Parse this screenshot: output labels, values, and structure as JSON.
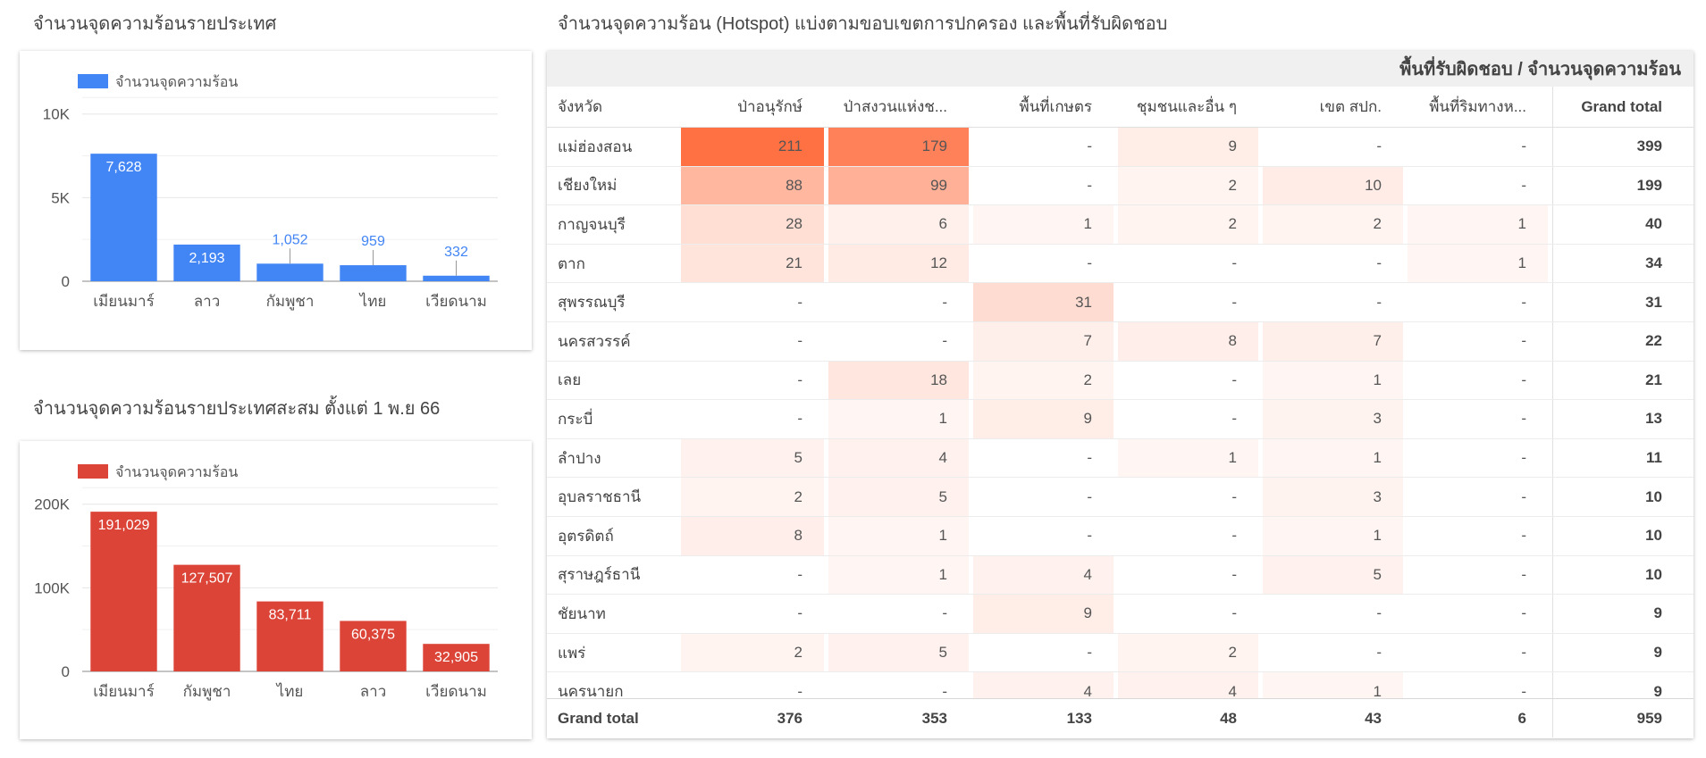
{
  "titles": {
    "chart1": "จำนวนจุดความร้อนรายประเทศ",
    "chart2": "จำนวนจุดความร้อนรายประเทศสะสม ตั้งแต่ 1 พ.ย 66",
    "table": "จำนวนจุดความร้อน (Hotspot) แบ่งตามขอบเขตการปกครอง และพื้นที่รับผิดชอบ"
  },
  "chart_data": [
    {
      "type": "bar",
      "categories": [
        "เมียนมาร์",
        "ลาว",
        "กัมพูชา",
        "ไทย",
        "เวียดนาม"
      ],
      "series": [
        {
          "name": "จำนวนจุดความร้อน",
          "values": [
            7628,
            2193,
            1052,
            959,
            332
          ]
        }
      ],
      "data_labels": [
        "7,628",
        "2,193",
        "1,052",
        "959",
        "332"
      ],
      "y_ticks": [
        0,
        5000,
        10000
      ],
      "y_tick_labels": [
        "0",
        "5K",
        "10K"
      ],
      "ylim": [
        0,
        11000
      ],
      "grid": true,
      "legend": "top-left",
      "color": "#4285f4"
    },
    {
      "type": "bar",
      "categories": [
        "เมียนมาร์",
        "กัมพูชา",
        "ไทย",
        "ลาว",
        "เวียดนาม"
      ],
      "series": [
        {
          "name": "จำนวนจุดความร้อน",
          "values": [
            191029,
            127507,
            83711,
            60375,
            32905
          ]
        }
      ],
      "data_labels": [
        "191,029",
        "127,507",
        "83,711",
        "60,375",
        "32,905"
      ],
      "y_ticks": [
        0,
        100000,
        200000
      ],
      "y_tick_labels": [
        "0",
        "100K",
        "200K"
      ],
      "ylim": [
        0,
        220000
      ],
      "grid": true,
      "legend": "top-left",
      "color": "#db4437"
    },
    {
      "type": "table",
      "header_title": "พื้นที่รับผิดชอบ / จำนวนจุดความร้อน",
      "columns": [
        "จังหวัด",
        "ป่าอนุรักษ์",
        "ป่าสงวนแห่งช...",
        "พื้นที่เกษตร",
        "ชุมชนและอื่น ๆ",
        "เขต สปก.",
        "พื้นที่ริมทางห...",
        "Grand total"
      ],
      "rows": [
        {
          "province": "แม่ฮ่องสอน",
          "values": [
            "211",
            "179",
            "-",
            "9",
            "-",
            "-"
          ],
          "total": "399"
        },
        {
          "province": "เชียงใหม่",
          "values": [
            "88",
            "99",
            "-",
            "2",
            "10",
            "-"
          ],
          "total": "199"
        },
        {
          "province": "กาญจนบุรี",
          "values": [
            "28",
            "6",
            "1",
            "2",
            "2",
            "1"
          ],
          "total": "40"
        },
        {
          "province": "ตาก",
          "values": [
            "21",
            "12",
            "-",
            "-",
            "-",
            "1"
          ],
          "total": "34"
        },
        {
          "province": "สุพรรณบุรี",
          "values": [
            "-",
            "-",
            "31",
            "-",
            "-",
            "-"
          ],
          "total": "31"
        },
        {
          "province": "นครสวรรค์",
          "values": [
            "-",
            "-",
            "7",
            "8",
            "7",
            "-"
          ],
          "total": "22"
        },
        {
          "province": "เลย",
          "values": [
            "-",
            "18",
            "2",
            "-",
            "1",
            "-"
          ],
          "total": "21"
        },
        {
          "province": "กระบี่",
          "values": [
            "-",
            "1",
            "9",
            "-",
            "3",
            "-"
          ],
          "total": "13"
        },
        {
          "province": "ลำปาง",
          "values": [
            "5",
            "4",
            "-",
            "1",
            "1",
            "-"
          ],
          "total": "11"
        },
        {
          "province": "อุบลราชธานี",
          "values": [
            "2",
            "5",
            "-",
            "-",
            "3",
            "-"
          ],
          "total": "10"
        },
        {
          "province": "อุตรดิตถ์",
          "values": [
            "8",
            "1",
            "-",
            "-",
            "1",
            "-"
          ],
          "total": "10"
        },
        {
          "province": "สุราษฎร์ธานี",
          "values": [
            "-",
            "1",
            "4",
            "-",
            "5",
            "-"
          ],
          "total": "10"
        },
        {
          "province": "ชัยนาท",
          "values": [
            "-",
            "-",
            "9",
            "-",
            "-",
            "-"
          ],
          "total": "9"
        },
        {
          "province": "แพร่",
          "values": [
            "2",
            "5",
            "-",
            "2",
            "-",
            "-"
          ],
          "total": "9"
        },
        {
          "province": "นครนายก",
          "values": [
            "-",
            "-",
            "4",
            "4",
            "1",
            "-"
          ],
          "total": "9"
        }
      ],
      "footer": {
        "label": "Grand total",
        "values": [
          "376",
          "353",
          "133",
          "48",
          "43",
          "6"
        ],
        "total": "959"
      },
      "heat_color": "#ff7043"
    }
  ]
}
